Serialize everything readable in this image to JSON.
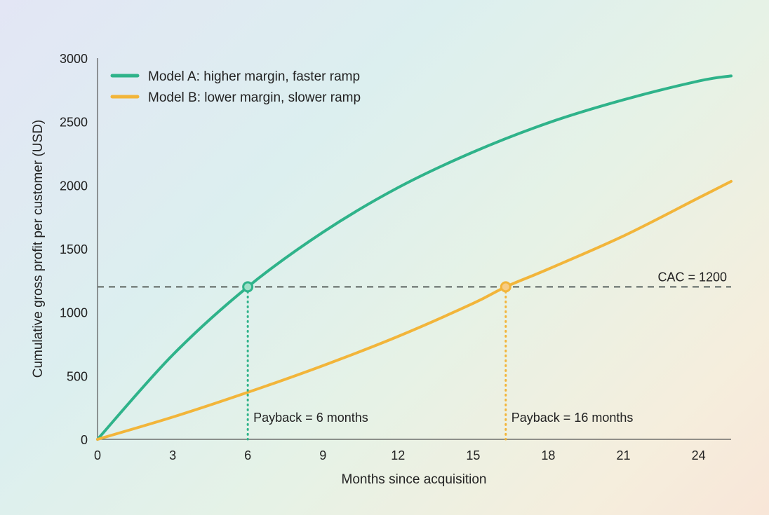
{
  "chart_data": {
    "type": "line",
    "xlabel": "Months since acquisition",
    "ylabel": "Cumulative gross profit per customer (USD)",
    "xlim": [
      0,
      25.3
    ],
    "ylim": [
      0,
      3000
    ],
    "xticks": [
      0,
      3,
      6,
      9,
      12,
      15,
      18,
      21,
      24
    ],
    "yticks": [
      0,
      500,
      1000,
      1500,
      2000,
      2500,
      3000
    ],
    "grid": false,
    "legend_position": "top-left",
    "series": [
      {
        "name": "Model A: higher margin, faster ramp",
        "color": "#2fb38a",
        "x": [
          0,
          3,
          6,
          9,
          12,
          15,
          18,
          21,
          24,
          25.3
        ],
        "y": [
          0,
          664,
          1200,
          1630,
          1981,
          2261,
          2491,
          2672,
          2820,
          2860
        ]
      },
      {
        "name": "Model B: lower margin, slower ramp",
        "color": "#f2b53a",
        "x": [
          0,
          3,
          6,
          9,
          12,
          15,
          16.3,
          18,
          21,
          24,
          25.3
        ],
        "y": [
          0,
          175,
          370,
          580,
          810,
          1070,
          1200,
          1340,
          1600,
          1900,
          2030
        ]
      }
    ],
    "reference_line": {
      "y": 1200,
      "label": "CAC = 1200",
      "color": "#6b7470"
    },
    "annotations": [
      {
        "x": 6,
        "y": 1200,
        "label": "Payback = 6 months",
        "color": "#2fb38a"
      },
      {
        "x": 16.3,
        "y": 1200,
        "label": "Payback = 16 months",
        "color": "#f2b53a"
      }
    ]
  }
}
